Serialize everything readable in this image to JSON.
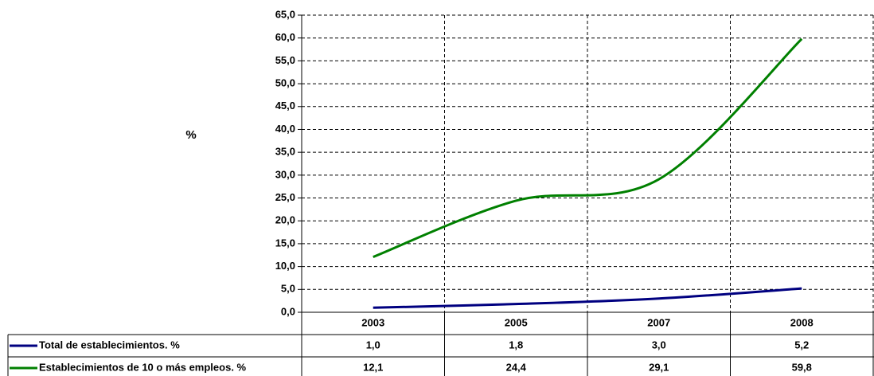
{
  "chart_data": {
    "type": "line",
    "y_label": "%",
    "categories": [
      "2003",
      "2005",
      "2007",
      "2008"
    ],
    "series": [
      {
        "name": "Total de establecimientos. %",
        "color": "#000080",
        "values": [
          1.0,
          1.8,
          3.0,
          5.2
        ],
        "value_labels": [
          "1,0",
          "1,8",
          "3,0",
          "5,2"
        ]
      },
      {
        "name": "Establecimientos de 10 o más empleos. %",
        "color": "#008000",
        "values": [
          12.1,
          24.4,
          29.1,
          59.8
        ],
        "value_labels": [
          "12,1",
          "24,4",
          "29,1",
          "59,8"
        ]
      }
    ],
    "ylim": [
      0,
      65
    ],
    "yticks": [
      {
        "value": 0,
        "label": "0,0"
      },
      {
        "value": 5,
        "label": "5,0"
      },
      {
        "value": 10,
        "label": "10,0"
      },
      {
        "value": 15,
        "label": "15,0"
      },
      {
        "value": 20,
        "label": "20,0"
      },
      {
        "value": 25,
        "label": "25,0"
      },
      {
        "value": 30,
        "label": "30,0"
      },
      {
        "value": 35,
        "label": "35,0"
      },
      {
        "value": 40,
        "label": "40,0"
      },
      {
        "value": 45,
        "label": "45,0"
      },
      {
        "value": 50,
        "label": "50,0"
      },
      {
        "value": 55,
        "label": "55,0"
      },
      {
        "value": 60,
        "label": "60,0"
      },
      {
        "value": 65,
        "label": "65,0"
      }
    ],
    "grid": true
  }
}
